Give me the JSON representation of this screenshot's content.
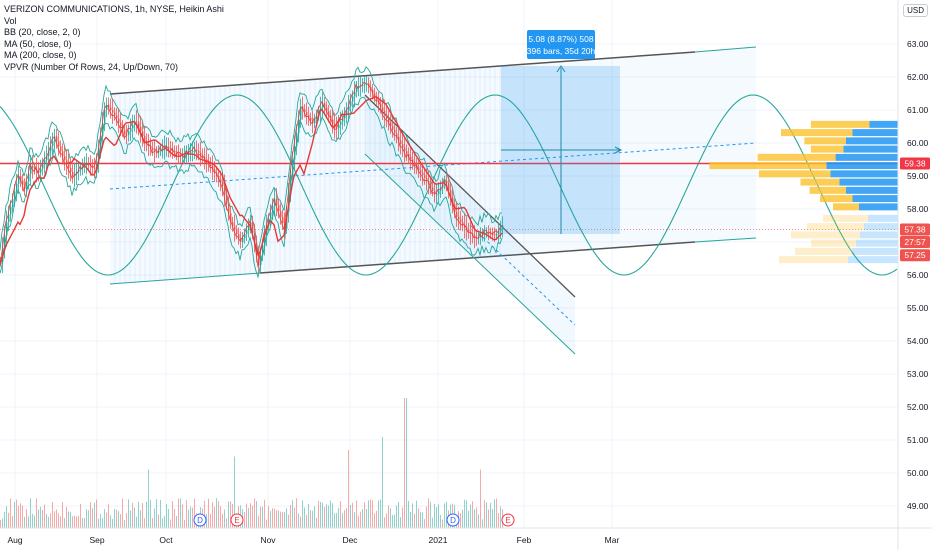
{
  "legend": {
    "title": "VERIZON COMMUNICATIONS, 1h, NYSE, Heikin Ashi",
    "vol": "Vol",
    "bb": "BB (20, close, 2, 0)",
    "ma50": "MA (50, close, 0)",
    "ma200": "MA (200, close, 0)",
    "vpvr": "VPVR (Number Of Rows, 24, Up/Down, 70)"
  },
  "currency": "USD",
  "colors": {
    "up": "#26a69a",
    "down": "#ef5350",
    "ma": "#e53935",
    "channel": "#26a69a",
    "vp_up": "#2196f3",
    "vp_down": "#fbc02d",
    "measure": "#2196f3",
    "hline": "#f23645"
  },
  "chart_data": {
    "type": "candlestick",
    "x_ticks": [
      "Aug",
      "Sep",
      "Oct",
      "Nov",
      "Dec",
      "2021",
      "Feb",
      "Mar"
    ],
    "y_ticks": [
      "63.00",
      "62.00",
      "61.00",
      "60.00",
      "59.00",
      "58.00",
      "57.00",
      "56.00",
      "55.00",
      "54.00",
      "53.00",
      "52.00",
      "51.00",
      "50.00",
      "49.00"
    ],
    "ylim": [
      48.5,
      63.4
    ],
    "price_points": [
      {
        "t": 0,
        "p": 56.4
      },
      {
        "t": 6,
        "p": 57.6
      },
      {
        "t": 12,
        "p": 58.3
      },
      {
        "t": 18,
        "p": 59.0
      },
      {
        "t": 24,
        "p": 58.6
      },
      {
        "t": 30,
        "p": 59.3
      },
      {
        "t": 38,
        "p": 59.1
      },
      {
        "t": 46,
        "p": 59.6
      },
      {
        "t": 54,
        "p": 60.2
      },
      {
        "t": 62,
        "p": 59.6
      },
      {
        "t": 72,
        "p": 59.0
      },
      {
        "t": 85,
        "p": 59.4
      },
      {
        "t": 95,
        "p": 59.2
      },
      {
        "t": 105,
        "p": 61.2
      },
      {
        "t": 115,
        "p": 60.8
      },
      {
        "t": 125,
        "p": 60.2
      },
      {
        "t": 135,
        "p": 60.7
      },
      {
        "t": 145,
        "p": 60.0
      },
      {
        "t": 155,
        "p": 59.7
      },
      {
        "t": 165,
        "p": 59.9
      },
      {
        "t": 180,
        "p": 59.6
      },
      {
        "t": 195,
        "p": 59.8
      },
      {
        "t": 210,
        "p": 59.3
      },
      {
        "t": 222,
        "p": 58.7
      },
      {
        "t": 230,
        "p": 57.6
      },
      {
        "t": 240,
        "p": 57.0
      },
      {
        "t": 250,
        "p": 57.6
      },
      {
        "t": 258,
        "p": 56.3
      },
      {
        "t": 266,
        "p": 57.5
      },
      {
        "t": 274,
        "p": 58.3
      },
      {
        "t": 284,
        "p": 57.4
      },
      {
        "t": 292,
        "p": 59.5
      },
      {
        "t": 300,
        "p": 61.1
      },
      {
        "t": 312,
        "p": 60.6
      },
      {
        "t": 322,
        "p": 61.2
      },
      {
        "t": 335,
        "p": 60.4
      },
      {
        "t": 345,
        "p": 60.9
      },
      {
        "t": 356,
        "p": 61.7
      },
      {
        "t": 366,
        "p": 61.8
      },
      {
        "t": 378,
        "p": 61.2
      },
      {
        "t": 392,
        "p": 60.4
      },
      {
        "t": 405,
        "p": 59.7
      },
      {
        "t": 415,
        "p": 59.3
      },
      {
        "t": 425,
        "p": 58.9
      },
      {
        "t": 435,
        "p": 58.4
      },
      {
        "t": 445,
        "p": 58.9
      },
      {
        "t": 455,
        "p": 57.8
      },
      {
        "t": 465,
        "p": 57.4
      },
      {
        "t": 475,
        "p": 57.1
      },
      {
        "t": 485,
        "p": 57.3
      },
      {
        "t": 495,
        "p": 57.2
      },
      {
        "t": 502,
        "p": 57.5
      }
    ],
    "volume_points": [
      {
        "t": 148,
        "v": 0.45
      },
      {
        "t": 234,
        "v": 0.55
      },
      {
        "t": 348,
        "v": 0.6
      },
      {
        "t": 382,
        "v": 0.7
      },
      {
        "t": 405,
        "v": 1.0
      },
      {
        "t": 480,
        "v": 0.45
      }
    ],
    "volume_profile": [
      {
        "p": 60.55,
        "up": 0.22,
        "down": 0.45
      },
      {
        "p": 60.3,
        "up": 0.35,
        "down": 0.55
      },
      {
        "p": 60.05,
        "up": 0.4,
        "down": 0.32
      },
      {
        "p": 59.8,
        "up": 0.42,
        "down": 0.25
      },
      {
        "p": 59.55,
        "up": 0.48,
        "down": 0.6
      },
      {
        "p": 59.3,
        "up": 0.55,
        "down": 0.9
      },
      {
        "p": 59.05,
        "up": 0.52,
        "down": 0.55
      },
      {
        "p": 58.8,
        "up": 0.45,
        "down": 0.3
      },
      {
        "p": 58.55,
        "up": 0.4,
        "down": 0.28
      },
      {
        "p": 58.3,
        "up": 0.35,
        "down": 0.25
      },
      {
        "p": 58.05,
        "up": 0.3,
        "down": 0.2
      }
    ],
    "price_tags": [
      {
        "p": 59.38,
        "label": "59.38",
        "color": "#f23645"
      },
      {
        "p": 57.38,
        "label": "57.38",
        "color": "#ef5350"
      },
      {
        "p": 57.0,
        "label": "27:57",
        "color": "#ef5350"
      },
      {
        "p": 56.6,
        "label": "57.25",
        "color": "#ef5350"
      }
    ],
    "horizontal_line": 59.38,
    "measure_label_line1": "5.08 (8.87%) 508",
    "measure_label_line2": "396 bars, 35d 20h",
    "event_markers": [
      {
        "t": 200,
        "label": "D",
        "kind": "dividend"
      },
      {
        "t": 237,
        "label": "E",
        "kind": "earnings"
      },
      {
        "t": 453,
        "label": "D",
        "kind": "dividend"
      },
      {
        "t": 508,
        "label": "E",
        "kind": "earnings"
      }
    ]
  }
}
